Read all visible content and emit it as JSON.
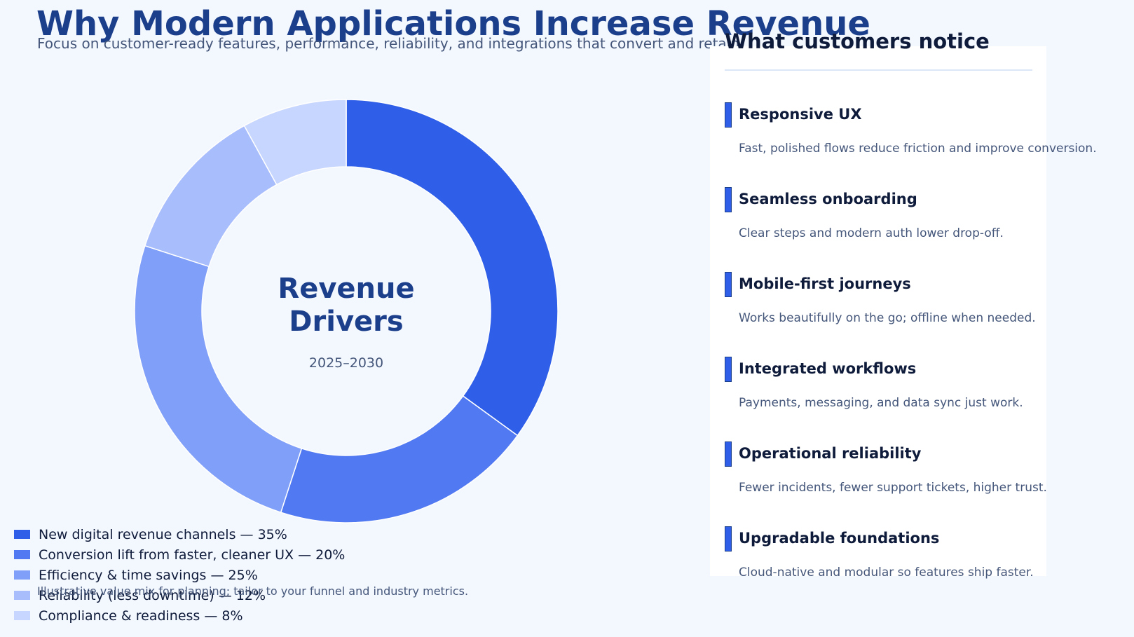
{
  "header": {
    "title": "Why Modern Applications Increase Revenue",
    "subtitle": "Focus on customer-ready features, performance, reliability, and integrations that convert and retain."
  },
  "center": {
    "line1": "Revenue",
    "line2": "Drivers",
    "years": "2025–2030"
  },
  "chart_data": {
    "type": "pie",
    "categories": [
      "New digital revenue channels",
      "Conversion lift from faster, cleaner UX",
      "Efficiency & time savings",
      "Reliability (less downtime)",
      "Compliance & readiness"
    ],
    "values": [
      35,
      20,
      25,
      12,
      8
    ],
    "colors": [
      "#2f5fe8",
      "#5079f2",
      "#809ff8",
      "#a8bdfc",
      "#c7d6fe"
    ],
    "legend_labels": [
      "New digital revenue channels — 35%",
      "Conversion lift from faster, cleaner UX — 20%",
      "Efficiency & time savings — 25%",
      "Reliability (less downtime) — 12%",
      "Compliance & readiness — 8%"
    ],
    "legend_position": "bottom-left",
    "style": "donut"
  },
  "footnote": "Illustrative value mix for planning; tailor to your funnel and industry metrics.",
  "panel": {
    "title": "What customers notice",
    "accent_color": "#2f5fe8",
    "items": [
      {
        "title": "Responsive UX",
        "desc": "Fast, polished flows reduce friction and improve conversion."
      },
      {
        "title": "Seamless onboarding",
        "desc": "Clear steps and modern auth lower drop-off."
      },
      {
        "title": "Mobile-first journeys",
        "desc": "Works beautifully on the go; offline when needed."
      },
      {
        "title": "Integrated workflows",
        "desc": "Payments, messaging, and data sync just work."
      },
      {
        "title": "Operational reliability",
        "desc": "Fewer incidents, fewer support tickets, higher trust."
      },
      {
        "title": "Upgradable foundations",
        "desc": "Cloud-native and modular so features ship faster."
      }
    ]
  }
}
